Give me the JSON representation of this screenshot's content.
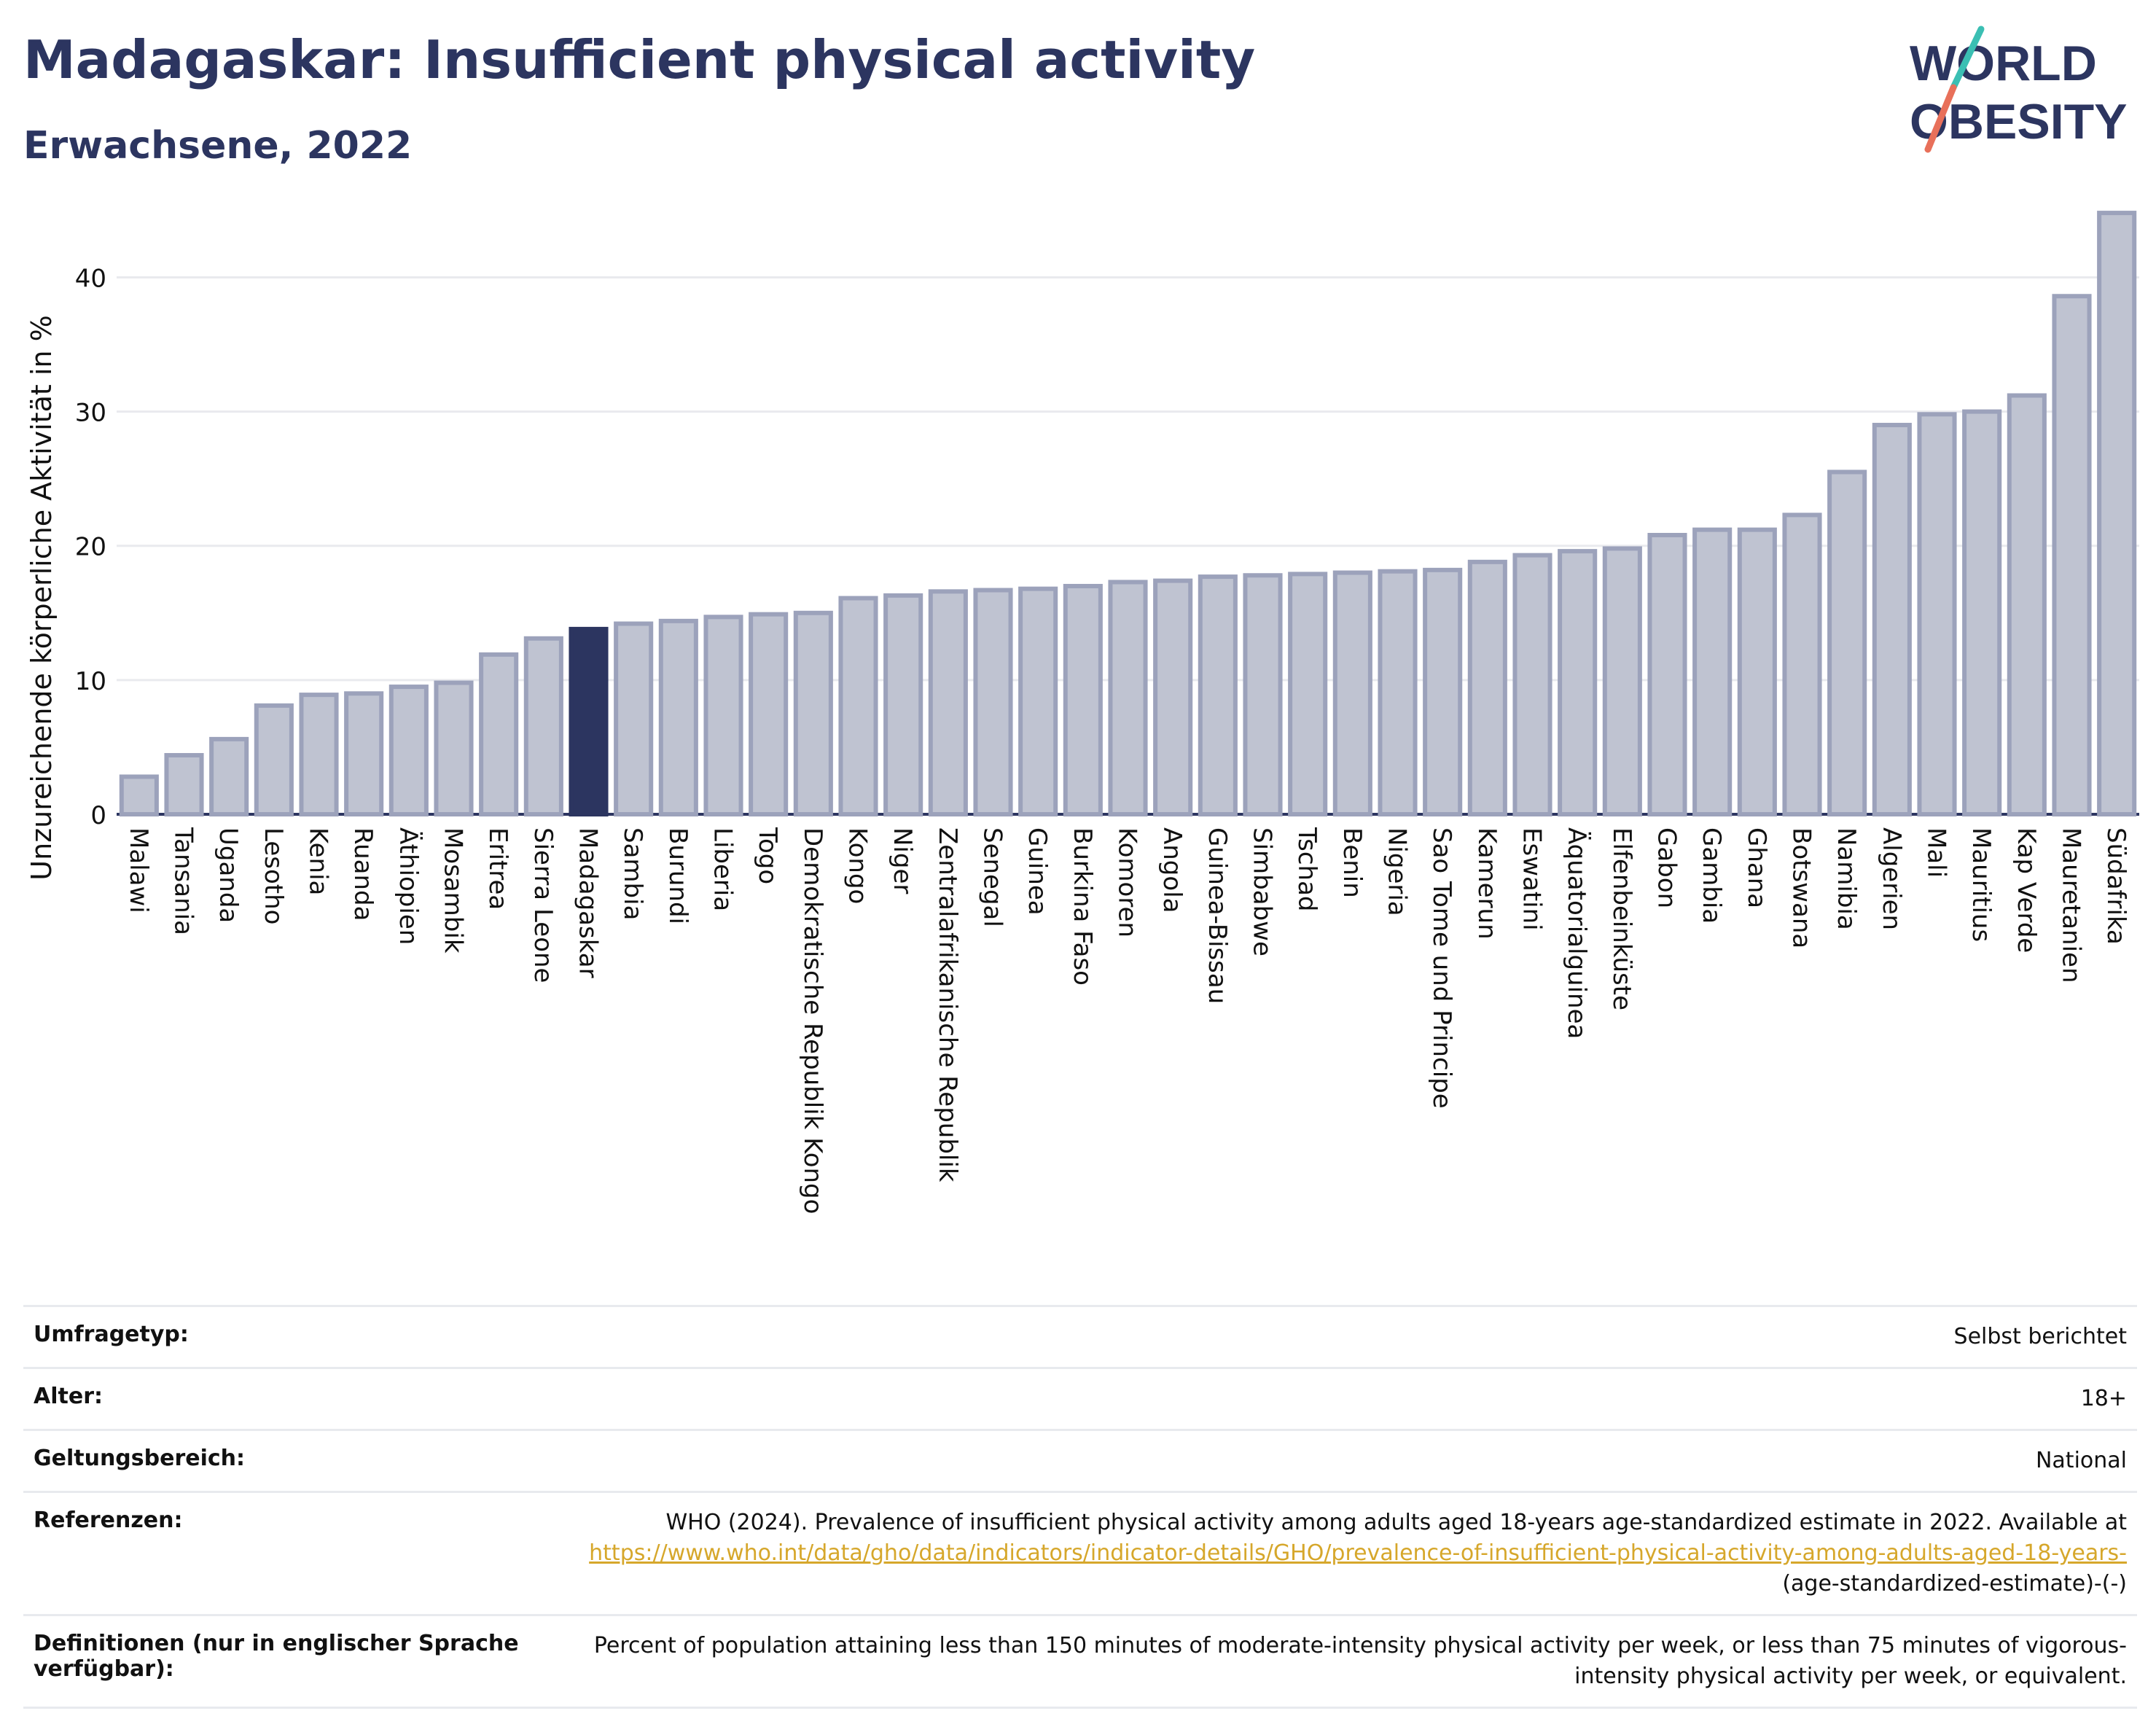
{
  "header": {
    "title": "Madagaskar: Insufficient physical activity",
    "subtitle": "Erwachsene, 2022"
  },
  "logo": {
    "line1": "WORLD",
    "line2": "OBESITY",
    "color_text": "#2c3560",
    "color_slash_top": "#3bbfb3",
    "color_slash_bottom": "#e8705a"
  },
  "colors": {
    "bar": "#bfc3d1",
    "bar_border": "#9ca2bb",
    "highlight": "#2c3560",
    "grid": "#e9eaee",
    "axis": "#2c3560"
  },
  "chart_data": {
    "type": "bar",
    "title": "Madagaskar: Insufficient physical activity",
    "subtitle": "Erwachsene, 2022",
    "xlabel": "",
    "ylabel": "Unzureichende körperliche Aktivität in %",
    "ylim": [
      0,
      46
    ],
    "yticks": [
      0,
      10,
      20,
      30,
      40
    ],
    "grid": true,
    "highlight": "Madagaskar",
    "categories": [
      "Malawi",
      "Tansania",
      "Uganda",
      "Lesotho",
      "Kenia",
      "Ruanda",
      "Äthiopien",
      "Mosambik",
      "Eritrea",
      "Sierra Leone",
      "Madagaskar",
      "Sambia",
      "Burundi",
      "Liberia",
      "Togo",
      "Demokratische Republik Kongo",
      "Kongo",
      "Niger",
      "Zentralafrikanische Republik",
      "Senegal",
      "Guinea",
      "Burkina Faso",
      "Komoren",
      "Angola",
      "Guinea-Bissau",
      "Simbabwe",
      "Tschad",
      "Benin",
      "Nigeria",
      "Sao Tome und Principe",
      "Kamerun",
      "Eswatini",
      "Äquatorialguinea",
      "Elfenbeinküste",
      "Gabon",
      "Gambia",
      "Ghana",
      "Botswana",
      "Namibia",
      "Algerien",
      "Mali",
      "Mauritius",
      "Kap Verde",
      "Mauretanien",
      "Südafrika"
    ],
    "values": [
      2.8,
      4.4,
      5.6,
      8.1,
      8.9,
      9.0,
      9.5,
      9.8,
      11.9,
      13.1,
      13.8,
      14.2,
      14.4,
      14.7,
      14.9,
      15.0,
      16.1,
      16.3,
      16.6,
      16.7,
      16.8,
      17.0,
      17.3,
      17.4,
      17.7,
      17.8,
      17.9,
      18.0,
      18.1,
      18.2,
      18.8,
      19.3,
      19.6,
      19.8,
      20.8,
      21.2,
      21.2,
      22.3,
      25.5,
      29.0,
      29.8,
      30.0,
      31.2,
      38.6,
      44.8
    ]
  },
  "meta": {
    "rows": [
      {
        "label": "Umfragetyp:",
        "value": "Selbst berichtet"
      },
      {
        "label": "Alter:",
        "value": "18+"
      },
      {
        "label": "Geltungsbereich:",
        "value": "National"
      }
    ],
    "references": {
      "label": "Referenzen:",
      "text": "WHO (2024). Prevalence of insufficient physical activity among adults aged 18-years age-standardized estimate in 2022. Available at",
      "link": "https://www.who.int/data/gho/data/indicators/indicator-details/GHO/prevalence-of-insufficient-physical-activity-among-adults-aged-18-years-",
      "suffix": "(age-standardized-estimate)-(-)"
    },
    "definitions": {
      "label": "Definitionen (nur in englischer Sprache verfügbar):",
      "value": "Percent of population attaining less than 150 minutes of moderate-intensity physical activity per week, or less than 75 minutes of vigorous-intensity physical activity per week, or equivalent."
    }
  }
}
